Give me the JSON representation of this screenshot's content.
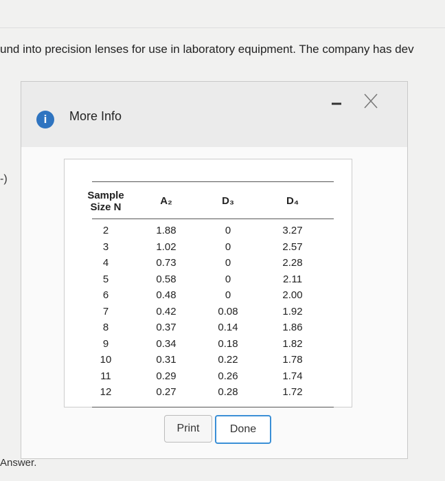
{
  "page": {
    "background_text": "und into precision lenses for use in laboratory equipment. The company has dev",
    "side_text": "-)",
    "answer_text": "Answer."
  },
  "dialog": {
    "title": "More Info",
    "icon": "i",
    "table": {
      "header": [
        "Sample Size N",
        "A₂",
        "D₃",
        "D₄"
      ],
      "rows": [
        [
          "2",
          "1.88",
          "0",
          "3.27"
        ],
        [
          "3",
          "1.02",
          "0",
          "2.57"
        ],
        [
          "4",
          "0.73",
          "0",
          "2.28"
        ],
        [
          "5",
          "0.58",
          "0",
          "2.11"
        ],
        [
          "6",
          "0.48",
          "0",
          "2.00"
        ],
        [
          "7",
          "0.42",
          "0.08",
          "1.92"
        ],
        [
          "8",
          "0.37",
          "0.14",
          "1.86"
        ],
        [
          "9",
          "0.34",
          "0.18",
          "1.82"
        ],
        [
          "10",
          "0.31",
          "0.22",
          "1.78"
        ],
        [
          "11",
          "0.29",
          "0.26",
          "1.74"
        ],
        [
          "12",
          "0.27",
          "0.28",
          "1.72"
        ]
      ]
    },
    "buttons": [
      "Print",
      "Done"
    ]
  }
}
